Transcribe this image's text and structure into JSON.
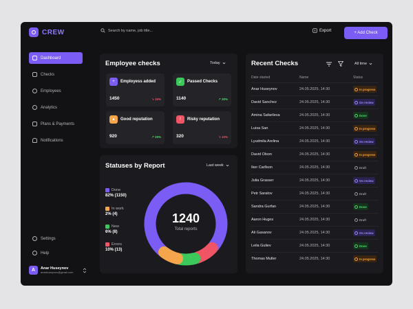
{
  "app": {
    "name": "CREW"
  },
  "search": {
    "placeholder": "Search by name, job title..."
  },
  "header": {
    "export_label": "Export",
    "add_check_label": "+ Add Check"
  },
  "sidebar": {
    "items": [
      {
        "label": "Dashboard",
        "active": true
      },
      {
        "label": "Checks"
      },
      {
        "label": "Employees"
      },
      {
        "label": "Analytics"
      },
      {
        "label": "Plans & Payments"
      },
      {
        "label": "Notifications"
      }
    ],
    "bottom": [
      {
        "label": "Settings"
      },
      {
        "label": "Help"
      }
    ],
    "user": {
      "initial": "A",
      "name": "Anar Huseynov",
      "email": "anarhuseynov@gmail.com"
    }
  },
  "employee_checks": {
    "title": "Employee checks",
    "period": "Today",
    "tiles": [
      {
        "label": "Employess added",
        "value": "1450",
        "delta": "↘ 15%",
        "trend": "down",
        "color": "#7b5cf5"
      },
      {
        "label": "Passed Checks",
        "value": "1140",
        "delta": "↗ 30%",
        "trend": "up",
        "color": "#3cc85a"
      },
      {
        "label": "Good reputation",
        "value": "920",
        "delta": "↗ 25%",
        "trend": "up",
        "color": "#f5a54a"
      },
      {
        "label": "Risky reputation",
        "value": "320",
        "delta": "↘ 10%",
        "trend": "down",
        "color": "#f05565"
      }
    ]
  },
  "statuses": {
    "title": "Statuses by Report",
    "period": "Last week",
    "total": "1240",
    "total_label": "Total reports",
    "legend": [
      {
        "label": "Done",
        "value": "82% (1150)",
        "color": "#7b5cf5"
      },
      {
        "label": "In work",
        "value": "2% (4)",
        "color": "#f5a54a"
      },
      {
        "label": "New",
        "value": "6% (8)",
        "color": "#3cc85a"
      },
      {
        "label": "Errors",
        "value": "10% (13)",
        "color": "#f05565"
      }
    ]
  },
  "chart_data": {
    "type": "pie",
    "categories": [
      "Done",
      "In work",
      "New",
      "Errors"
    ],
    "values": [
      82,
      2,
      6,
      10
    ],
    "colors": [
      "#7b5cf5",
      "#f5a54a",
      "#3cc85a",
      "#f05565"
    ],
    "title": "Statuses by Report"
  },
  "recent_checks": {
    "title": "Recent Checks",
    "period": "All time",
    "columns": [
      "Date started",
      "Name",
      "Status"
    ],
    "rows": [
      {
        "name": "Anar Huseynov",
        "date": "24.05.2025, 14:30",
        "status": "In progress",
        "kind": "progress"
      },
      {
        "name": "David Sanchez",
        "date": "24.05.2025, 14:30",
        "status": "On review",
        "kind": "review"
      },
      {
        "name": "Amina Safarileva",
        "date": "24.05.2025, 14:30",
        "status": "Done",
        "kind": "done"
      },
      {
        "name": "Luisa San",
        "date": "24.05.2025, 14:30",
        "status": "In progress",
        "kind": "progress"
      },
      {
        "name": "Lyudmila Arelina",
        "date": "24.05.2025, 14:30",
        "status": "On review",
        "kind": "review"
      },
      {
        "name": "David Olson",
        "date": "24.05.2025, 14:30",
        "status": "In progress",
        "kind": "progress"
      },
      {
        "name": "Iker Carllson",
        "date": "24.05.2025, 14:30",
        "status": "Draft",
        "kind": "draft"
      },
      {
        "name": "Julia Grasser",
        "date": "24.05.2025, 14:30",
        "status": "On review",
        "kind": "review"
      },
      {
        "name": "Petr Saratov",
        "date": "24.05.2025, 14:30",
        "status": "Draft",
        "kind": "draft"
      },
      {
        "name": "Sandra Gurfan",
        "date": "24.05.2025, 14:30",
        "status": "Done",
        "kind": "done"
      },
      {
        "name": "Aaron Huges",
        "date": "24.05.2025, 14:30",
        "status": "Draft",
        "kind": "draft"
      },
      {
        "name": "Ali Gasanov",
        "date": "24.05.2025, 14:30",
        "status": "On review",
        "kind": "review"
      },
      {
        "name": "Leila Guliev",
        "date": "24.05.2025, 14:30",
        "status": "Done",
        "kind": "done"
      },
      {
        "name": "Thomas Muller",
        "date": "24.05.2025, 14:30",
        "status": "In progress",
        "kind": "progress"
      }
    ]
  }
}
